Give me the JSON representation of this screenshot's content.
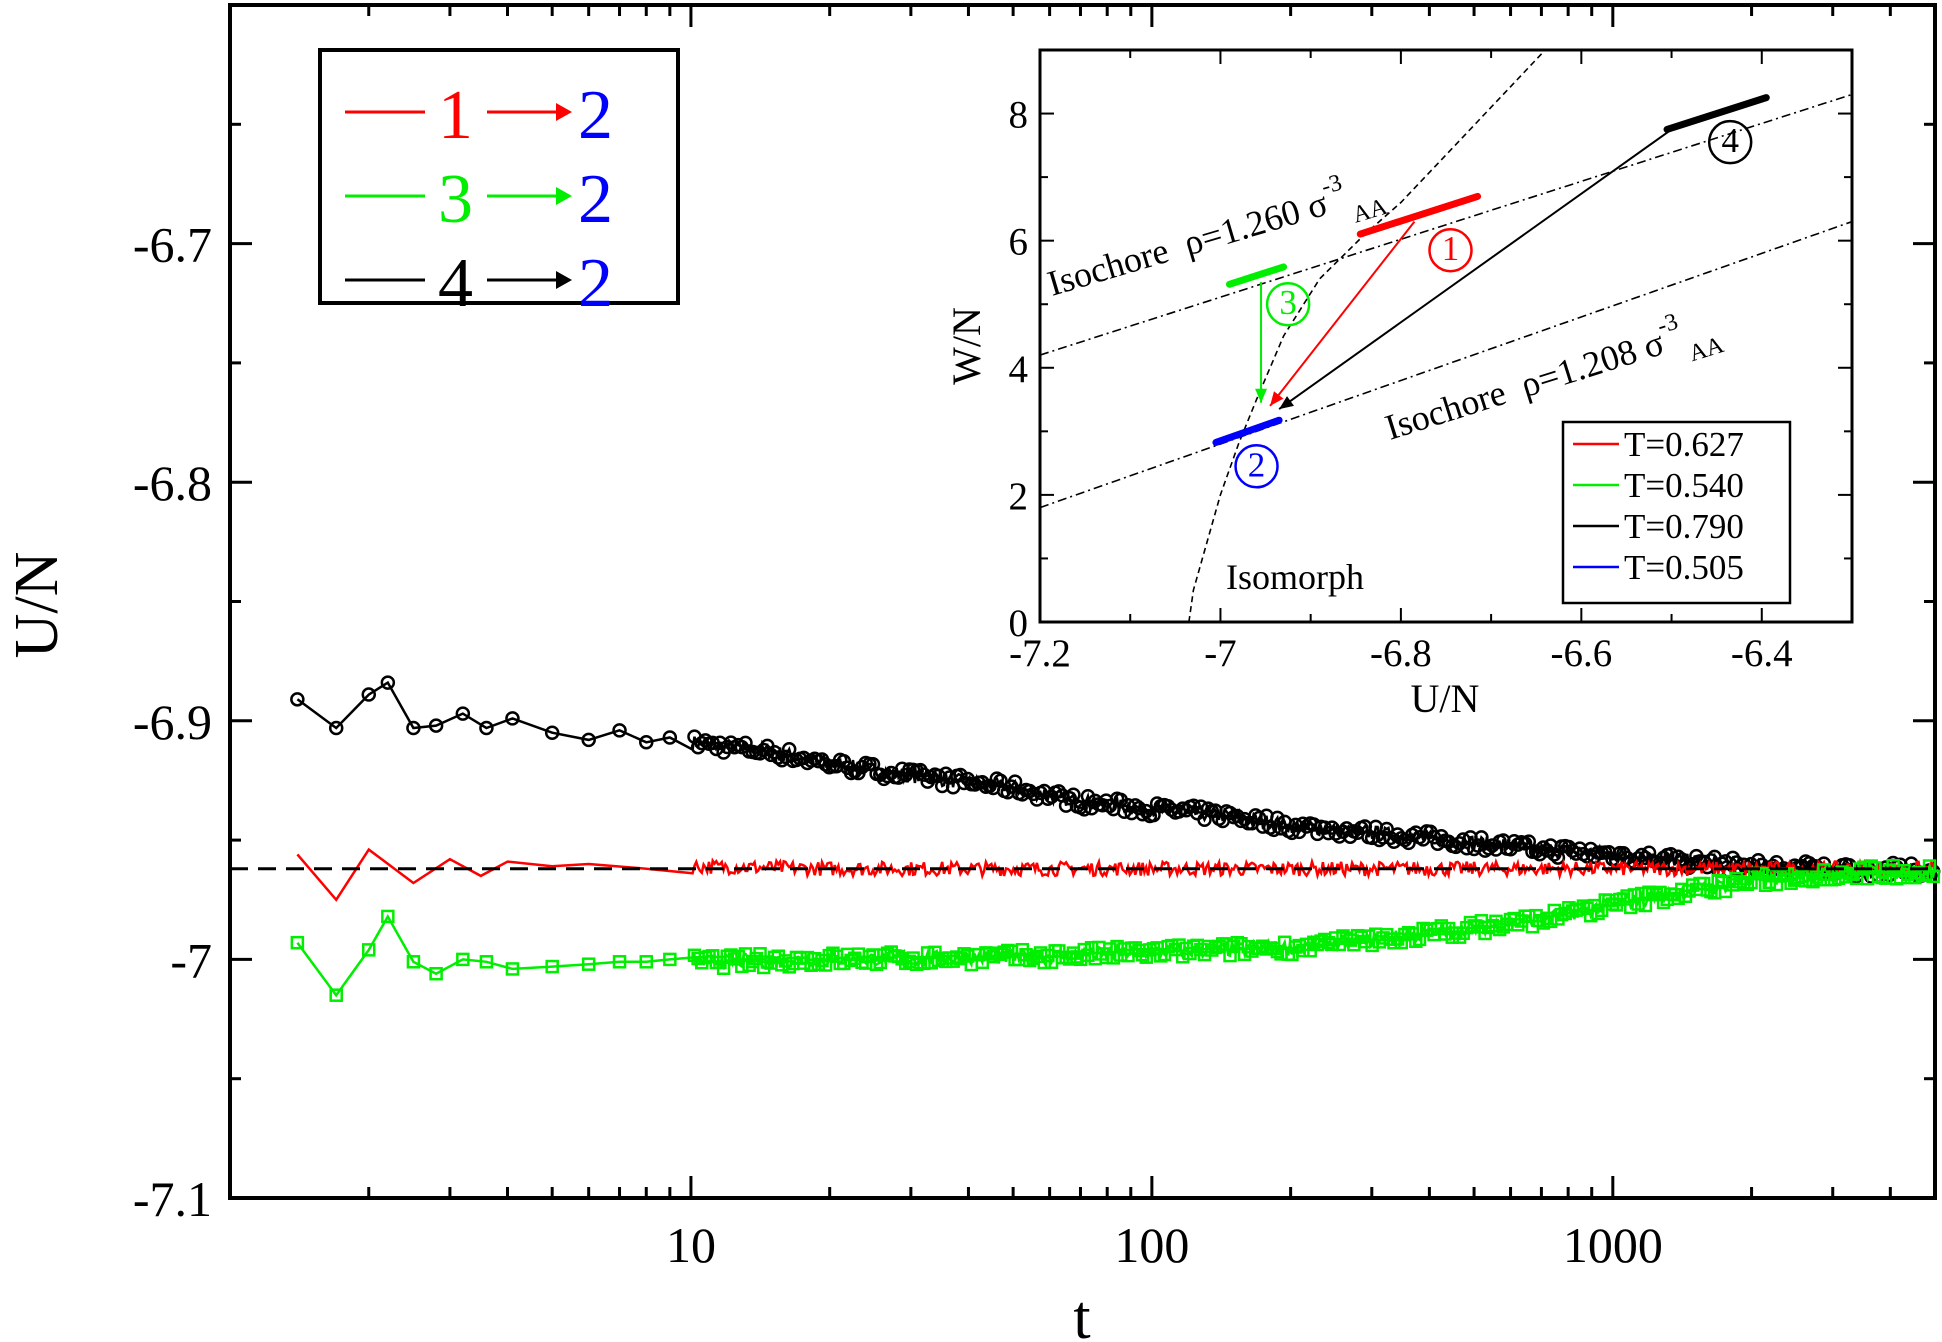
{
  "chart_data": [
    {
      "type": "line",
      "xscale": "log",
      "xlabel": "t",
      "ylabel": "U/N",
      "xlim": [
        1,
        5000
      ],
      "ylim": [
        -7.1,
        -6.6
      ],
      "x_ticks": [
        10,
        100,
        1000
      ],
      "x_tick_labels": [
        "10",
        "100",
        "1000"
      ],
      "y_ticks": [
        -7.1,
        -7.0,
        -6.9,
        -6.8,
        -6.7
      ],
      "y_tick_labels": [
        "-7.1",
        "-7",
        "-6.9",
        "-6.8",
        "-6.7"
      ],
      "reference_line": {
        "y": -6.962,
        "style": "dashed",
        "color": "#000000"
      },
      "legend": {
        "location": "top-left",
        "entries": [
          {
            "from": "1",
            "to": "2",
            "color": "#ff0000",
            "from_color": "#ff0000",
            "to_color": "#0000ff"
          },
          {
            "from": "3",
            "to": "2",
            "color": "#00ee00",
            "from_color": "#00ee00",
            "to_color": "#0000ff"
          },
          {
            "from": "4",
            "to": "2",
            "color": "#000000",
            "from_color": "#000000",
            "to_color": "#0000ff"
          }
        ]
      },
      "series": [
        {
          "name": "4→2",
          "color": "#000000",
          "marker": "circle",
          "x": [
            1.4,
            1.7,
            2.0,
            2.2,
            2.5,
            2.8,
            3.2,
            3.6,
            4.1,
            5,
            6,
            7,
            8,
            9,
            10,
            15,
            20,
            30,
            50,
            70,
            100,
            150,
            200,
            300,
            500,
            700,
            1000,
            1500,
            2000,
            3000,
            5000
          ],
          "y": [
            -6.891,
            -6.903,
            -6.889,
            -6.884,
            -6.903,
            -6.902,
            -6.897,
            -6.903,
            -6.899,
            -6.905,
            -6.908,
            -6.904,
            -6.909,
            -6.907,
            -6.909,
            -6.913,
            -6.918,
            -6.923,
            -6.928,
            -6.934,
            -6.937,
            -6.94,
            -6.944,
            -6.947,
            -6.951,
            -6.954,
            -6.956,
            -6.959,
            -6.961,
            -6.962,
            -6.963
          ]
        },
        {
          "name": "1→2",
          "color": "#ff0000",
          "marker": "none",
          "x": [
            1.4,
            1.7,
            2.0,
            2.5,
            3.0,
            3.5,
            4.0,
            5,
            6,
            8,
            10,
            20,
            50,
            100,
            200,
            500,
            1000,
            2000,
            5000
          ],
          "y": [
            -6.956,
            -6.975,
            -6.954,
            -6.968,
            -6.958,
            -6.965,
            -6.959,
            -6.961,
            -6.96,
            -6.962,
            -6.961,
            -6.962,
            -6.962,
            -6.962,
            -6.962,
            -6.962,
            -6.962,
            -6.962,
            -6.962
          ]
        },
        {
          "name": "3→2",
          "color": "#00ee00",
          "marker": "square",
          "x": [
            1.4,
            1.7,
            2.0,
            2.2,
            2.5,
            2.8,
            3.2,
            3.6,
            4.1,
            5,
            6,
            7,
            8,
            9,
            10,
            20,
            50,
            100,
            200,
            300,
            500,
            700,
            1000,
            1500,
            2000,
            3000,
            5000
          ],
          "y": [
            -6.993,
            -7.015,
            -6.996,
            -6.982,
            -7.001,
            -7.006,
            -7.0,
            -7.001,
            -7.004,
            -7.003,
            -7.002,
            -7.001,
            -7.001,
            -7.0,
            -7.001,
            -7.0,
            -6.999,
            -6.997,
            -6.995,
            -6.992,
            -6.987,
            -6.983,
            -6.977,
            -6.971,
            -6.967,
            -6.964,
            -6.963
          ]
        }
      ]
    },
    {
      "type": "scatter",
      "inset": true,
      "xlabel": "U/N",
      "ylabel": "W/N",
      "xlim": [
        -7.2,
        -6.3
      ],
      "ylim": [
        0,
        9
      ],
      "x_ticks": [
        -7.2,
        -7.0,
        -6.8,
        -6.6,
        -6.4
      ],
      "x_tick_labels": [
        "-7.2",
        "-7",
        "-6.8",
        "-6.6",
        "-6.4"
      ],
      "y_ticks": [
        0,
        2,
        4,
        6,
        8
      ],
      "y_tick_labels": [
        "0",
        "2",
        "4",
        "6",
        "8"
      ],
      "legend": {
        "location": "bottom-right",
        "entries": [
          {
            "label": "T=0.627",
            "color": "#ff0000"
          },
          {
            "label": "T=0.540",
            "color": "#00ee00"
          },
          {
            "label": "T=0.790",
            "color": "#000000"
          },
          {
            "label": "T=0.505",
            "color": "#0000ff"
          }
        ]
      },
      "state_points": [
        {
          "label": "1",
          "color": "#ff0000",
          "u": -6.78,
          "w": 6.4
        },
        {
          "label": "2",
          "color": "#0000ff",
          "u": -6.97,
          "w": 3.0
        },
        {
          "label": "3",
          "color": "#00ee00",
          "u": -6.96,
          "w": 5.45
        },
        {
          "label": "4",
          "color": "#000000",
          "u": -6.45,
          "w": 8.0
        }
      ],
      "isochores": [
        {
          "label_prefix": "Isochore",
          "rho_text": "ρ=1.260 σ",
          "sup": "-3",
          "sub": "AA",
          "line": [
            [
              -7.2,
              4.2
            ],
            [
              -6.3,
              8.3
            ]
          ]
        },
        {
          "label_prefix": "Isochore",
          "rho_text": "ρ=1.208 σ",
          "sup": "-3",
          "sub": "AA",
          "line": [
            [
              -7.2,
              1.8
            ],
            [
              -6.3,
              6.3
            ]
          ]
        }
      ],
      "isomorph": {
        "label": "Isomorph",
        "points": [
          [
            -7.035,
            0.0
          ],
          [
            -7.03,
            0.5
          ],
          [
            -7.02,
            1.0
          ],
          [
            -7.0,
            2.0
          ],
          [
            -6.98,
            2.8
          ],
          [
            -6.96,
            3.5
          ],
          [
            -6.93,
            4.5
          ],
          [
            -6.89,
            5.4
          ],
          [
            -6.84,
            6.1
          ],
          [
            -6.8,
            6.6
          ],
          [
            -6.76,
            7.2
          ],
          [
            -6.72,
            7.8
          ],
          [
            -6.68,
            8.4
          ],
          [
            -6.64,
            9.0
          ]
        ]
      },
      "arrows": [
        {
          "from": "1",
          "to": "2",
          "color": "#ff0000",
          "start": [
            -6.785,
            6.3
          ],
          "end": [
            -6.945,
            3.4
          ]
        },
        {
          "from": "3",
          "to": "2",
          "color": "#00ee00",
          "start": [
            -6.955,
            5.35
          ],
          "end": [
            -6.955,
            3.45
          ]
        },
        {
          "from": "4",
          "to": "2",
          "color": "#000000",
          "start": [
            -6.5,
            7.75
          ],
          "end": [
            -6.935,
            3.35
          ]
        }
      ]
    }
  ]
}
